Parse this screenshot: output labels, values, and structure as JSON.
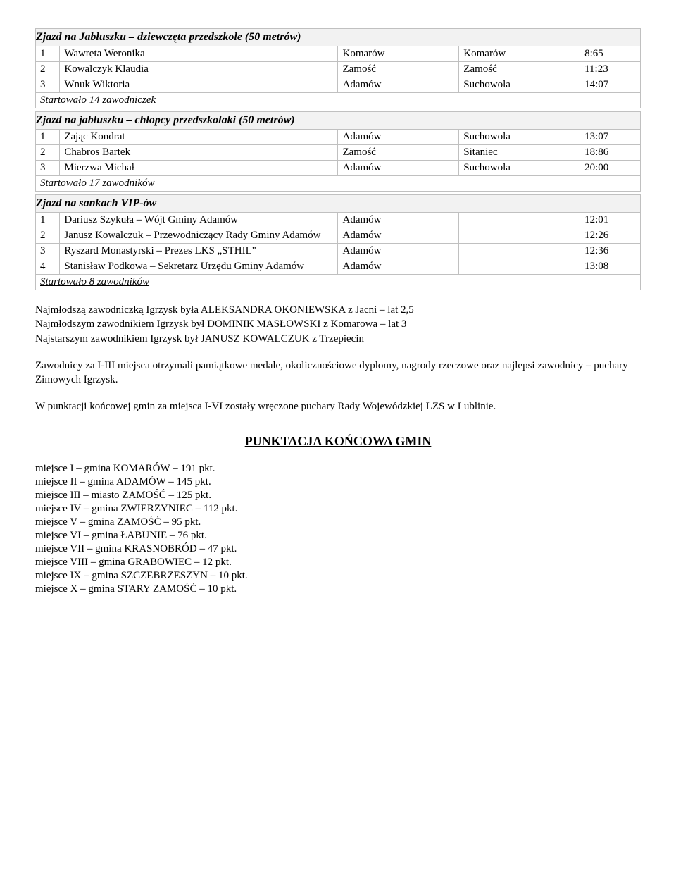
{
  "sections": [
    {
      "title": "Zjazd na Jabłuszku – dziewczęta przedszkole (50 metrów)",
      "rows": [
        {
          "rank": "1",
          "name": "Wawręta Weronika",
          "city": "Komarów",
          "club": "Komarów",
          "time": "8:65"
        },
        {
          "rank": "2",
          "name": "Kowalczyk Klaudia",
          "city": "Zamość",
          "club": "Zamość",
          "time": "11:23"
        },
        {
          "rank": "3",
          "name": "Wnuk Wiktoria",
          "city": "Adamów",
          "club": "Suchowola",
          "time": "14:07"
        }
      ],
      "footer": "Startowało 14 zawodniczek"
    },
    {
      "title": "Zjazd na jabłuszku – chłopcy przedszkolaki (50 metrów)",
      "rows": [
        {
          "rank": "1",
          "name": "Zając Kondrat",
          "city": "Adamów",
          "club": "Suchowola",
          "time": "13:07"
        },
        {
          "rank": "2",
          "name": "Chabros Bartek",
          "city": "Zamość",
          "club": "Sitaniec",
          "time": "18:86"
        },
        {
          "rank": "3",
          "name": "Mierzwa Michał",
          "city": "Adamów",
          "club": "Suchowola",
          "time": "20:00"
        }
      ],
      "footer": "Startowało 17 zawodników"
    },
    {
      "title": "Zjazd na sankach VIP-ów",
      "rows": [
        {
          "rank": "1",
          "name": "Dariusz Szykuła – Wójt Gminy Adamów",
          "city": "Adamów",
          "club": "",
          "time": "12:01"
        },
        {
          "rank": "2",
          "name": "Janusz Kowalczuk – Przewodniczący Rady Gminy Adamów",
          "city": "Adamów",
          "club": "",
          "time": "12:26"
        },
        {
          "rank": "3",
          "name": "Ryszard Monastyrski – Prezes LKS „STHIL\"",
          "city": "Adamów",
          "club": "",
          "time": "12:36"
        },
        {
          "rank": "4",
          "name": "Stanisław Podkowa – Sekretarz Urzędu Gminy Adamów",
          "city": "Adamów",
          "club": "",
          "time": "13:08"
        }
      ],
      "footer": "Startowało 8 zawodników"
    }
  ],
  "paragraphs": {
    "p1": "Najmłodszą zawodniczką Igrzysk była ALEKSANDRA OKONIEWSKA z Jacni – lat 2,5",
    "p2": "Najmłodszym zawodnikiem Igrzysk był DOMINIK MASŁOWSKI z Komarowa – lat 3",
    "p3": "Najstarszym zawodnikiem Igrzysk był JANUSZ KOWALCZUK z Trzepiecin",
    "p4": "Zawodnicy za I-III miejsca otrzymali pamiątkowe medale, okolicznościowe dyplomy, nagrody rzeczowe oraz najlepsi zawodnicy – puchary Zimowych Igrzysk.",
    "p5": "W punktacji końcowej gmin za miejsca I-VI zostały wręczone puchary Rady Wojewódzkiej LZS w Lublinie."
  },
  "points_title": "PUNKTACJA KOŃCOWA GMIN",
  "points": [
    "miejsce I – gmina KOMARÓW – 191 pkt.",
    "miejsce II – gmina ADAMÓW – 145 pkt.",
    "miejsce III – miasto ZAMOŚĆ – 125 pkt.",
    "miejsce IV – gmina ZWIERZYNIEC – 112 pkt.",
    "miejsce V – gmina ZAMOŚĆ – 95 pkt.",
    "miejsce VI – gmina ŁABUNIE – 76 pkt.",
    "miejsce VII – gmina KRASNOBRÓD – 47 pkt.",
    "miejsce VIII – gmina GRABOWIEC – 12 pkt.",
    "miejsce IX – gmina SZCZEBRZESZYN – 10 pkt.",
    "miejsce X – gmina STARY ZAMOŚĆ – 10 pkt."
  ]
}
